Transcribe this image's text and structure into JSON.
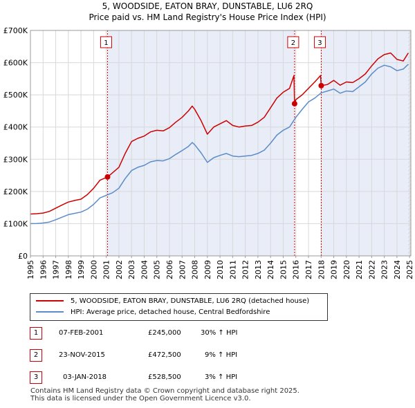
{
  "chart_data": {
    "type": "line",
    "title": "5, WOODSIDE, EATON BRAY, DUNSTABLE, LU6 2RQ",
    "subtitle": "Price paid vs. HM Land Registry's House Price Index (HPI)",
    "xlim": [
      1995.0,
      2025.1
    ],
    "ylim": [
      0,
      700000
    ],
    "x_ticks": [
      1995,
      1996,
      1997,
      1998,
      1999,
      2000,
      2001,
      2002,
      2003,
      2004,
      2005,
      2006,
      2007,
      2008,
      2009,
      2010,
      2011,
      2012,
      2013,
      2014,
      2015,
      2016,
      2017,
      2018,
      2019,
      2020,
      2021,
      2022,
      2023,
      2024,
      2025
    ],
    "y_ticks": [
      {
        "value": 0,
        "label": "£0"
      },
      {
        "value": 100000,
        "label": "£100K"
      },
      {
        "value": 200000,
        "label": "£200K"
      },
      {
        "value": 300000,
        "label": "£300K"
      },
      {
        "value": 400000,
        "label": "£400K"
      },
      {
        "value": 500000,
        "label": "£500K"
      },
      {
        "value": 600000,
        "label": "£600K"
      },
      {
        "value": 700000,
        "label": "£700K"
      }
    ],
    "grid": true,
    "series": [
      {
        "name": "5, WOODSIDE, EATON BRAY, DUNSTABLE, LU6 2RQ (detached house)",
        "color": "#cc0000",
        "x": [
          1995.0,
          1995.5,
          1996.0,
          1996.5,
          1997.0,
          1997.5,
          1998.0,
          1998.5,
          1999.0,
          1999.5,
          2000.0,
          2000.5,
          2001.1,
          2001.5,
          2002.0,
          2002.5,
          2003.0,
          2003.5,
          2004.0,
          2004.5,
          2005.0,
          2005.5,
          2006.0,
          2006.5,
          2007.0,
          2007.5,
          2007.8,
          2008.0,
          2008.5,
          2009.0,
          2009.5,
          2010.0,
          2010.5,
          2011.0,
          2011.5,
          2012.0,
          2012.5,
          2013.0,
          2013.5,
          2014.0,
          2014.5,
          2015.0,
          2015.5,
          2015.85,
          2015.9,
          2016.0,
          2016.5,
          2017.0,
          2017.5,
          2017.95,
          2018.01,
          2018.5,
          2019.0,
          2019.5,
          2020.0,
          2020.5,
          2021.0,
          2021.5,
          2022.0,
          2022.5,
          2023.0,
          2023.5,
          2024.0,
          2024.5,
          2024.9
        ],
        "y": [
          130000,
          131000,
          133000,
          138000,
          148000,
          158000,
          167000,
          172000,
          176000,
          190000,
          210000,
          235000,
          245000,
          258000,
          275000,
          318000,
          355000,
          365000,
          372000,
          385000,
          390000,
          388000,
          398000,
          415000,
          430000,
          450000,
          465000,
          455000,
          420000,
          378000,
          400000,
          410000,
          420000,
          405000,
          400000,
          403000,
          405000,
          415000,
          430000,
          460000,
          490000,
          508000,
          520000,
          560000,
          472500,
          485000,
          500000,
          520000,
          540000,
          560000,
          528500,
          532000,
          545000,
          530000,
          540000,
          538000,
          550000,
          565000,
          590000,
          612000,
          625000,
          630000,
          610000,
          605000,
          630000
        ]
      },
      {
        "name": "HPI: Average price, detached house, Central Bedfordshire",
        "color": "#5b8cc8",
        "x": [
          1995.0,
          1995.5,
          1996.0,
          1996.5,
          1997.0,
          1997.5,
          1998.0,
          1998.5,
          1999.0,
          1999.5,
          2000.0,
          2000.5,
          2001.0,
          2001.5,
          2002.0,
          2002.5,
          2003.0,
          2003.5,
          2004.0,
          2004.5,
          2005.0,
          2005.5,
          2006.0,
          2006.5,
          2007.0,
          2007.5,
          2007.8,
          2008.0,
          2008.5,
          2009.0,
          2009.5,
          2010.0,
          2010.5,
          2011.0,
          2011.5,
          2012.0,
          2012.5,
          2013.0,
          2013.5,
          2014.0,
          2014.5,
          2015.0,
          2015.5,
          2016.0,
          2016.5,
          2017.0,
          2017.5,
          2018.0,
          2018.5,
          2019.0,
          2019.5,
          2020.0,
          2020.5,
          2021.0,
          2021.5,
          2022.0,
          2022.5,
          2023.0,
          2023.5,
          2024.0,
          2024.5,
          2024.9
        ],
        "y": [
          100000,
          100500,
          102000,
          105000,
          112000,
          120000,
          128000,
          132000,
          136000,
          145000,
          160000,
          180000,
          188000,
          196000,
          210000,
          240000,
          265000,
          275000,
          281000,
          292000,
          296000,
          295000,
          302000,
          315000,
          327000,
          340000,
          352000,
          345000,
          320000,
          290000,
          305000,
          312000,
          318000,
          310000,
          308000,
          310000,
          312000,
          318000,
          328000,
          350000,
          375000,
          390000,
          400000,
          430000,
          455000,
          478000,
          490000,
          506000,
          512000,
          518000,
          505000,
          512000,
          510000,
          525000,
          540000,
          565000,
          583000,
          592000,
          587000,
          575000,
          580000,
          595000
        ]
      }
    ],
    "markers": [
      {
        "id": "1",
        "x": 2001.1,
        "y": 245000
      },
      {
        "id": "2",
        "x": 2015.9,
        "y": 472500
      },
      {
        "id": "3",
        "x": 2018.01,
        "y": 528500
      }
    ],
    "purchase_shading": [
      [
        2001.1,
        2015.9
      ],
      [
        2018.01,
        2025.1
      ]
    ],
    "hatch_after": 2024.9
  },
  "legend": {
    "property_label": "5, WOODSIDE, EATON BRAY, DUNSTABLE, LU6 2RQ (detached house)",
    "hpi_label": "HPI: Average price, detached house, Central Bedfordshire",
    "property_color": "#cc0000",
    "hpi_color": "#5b8cc8"
  },
  "sales": [
    {
      "id": "1",
      "date": "07-FEB-2001",
      "price": "£245,000",
      "hpi": "30% ↑ HPI"
    },
    {
      "id": "2",
      "date": "23-NOV-2015",
      "price": "£472,500",
      "hpi": "9% ↑ HPI"
    },
    {
      "id": "3",
      "date": "03-JAN-2018",
      "price": "£528,500",
      "hpi": "3% ↑ HPI"
    }
  ],
  "footer": {
    "line1": "Contains HM Land Registry data © Crown copyright and database right 2025.",
    "line2": "This data is licensed under the Open Government Licence v3.0."
  }
}
